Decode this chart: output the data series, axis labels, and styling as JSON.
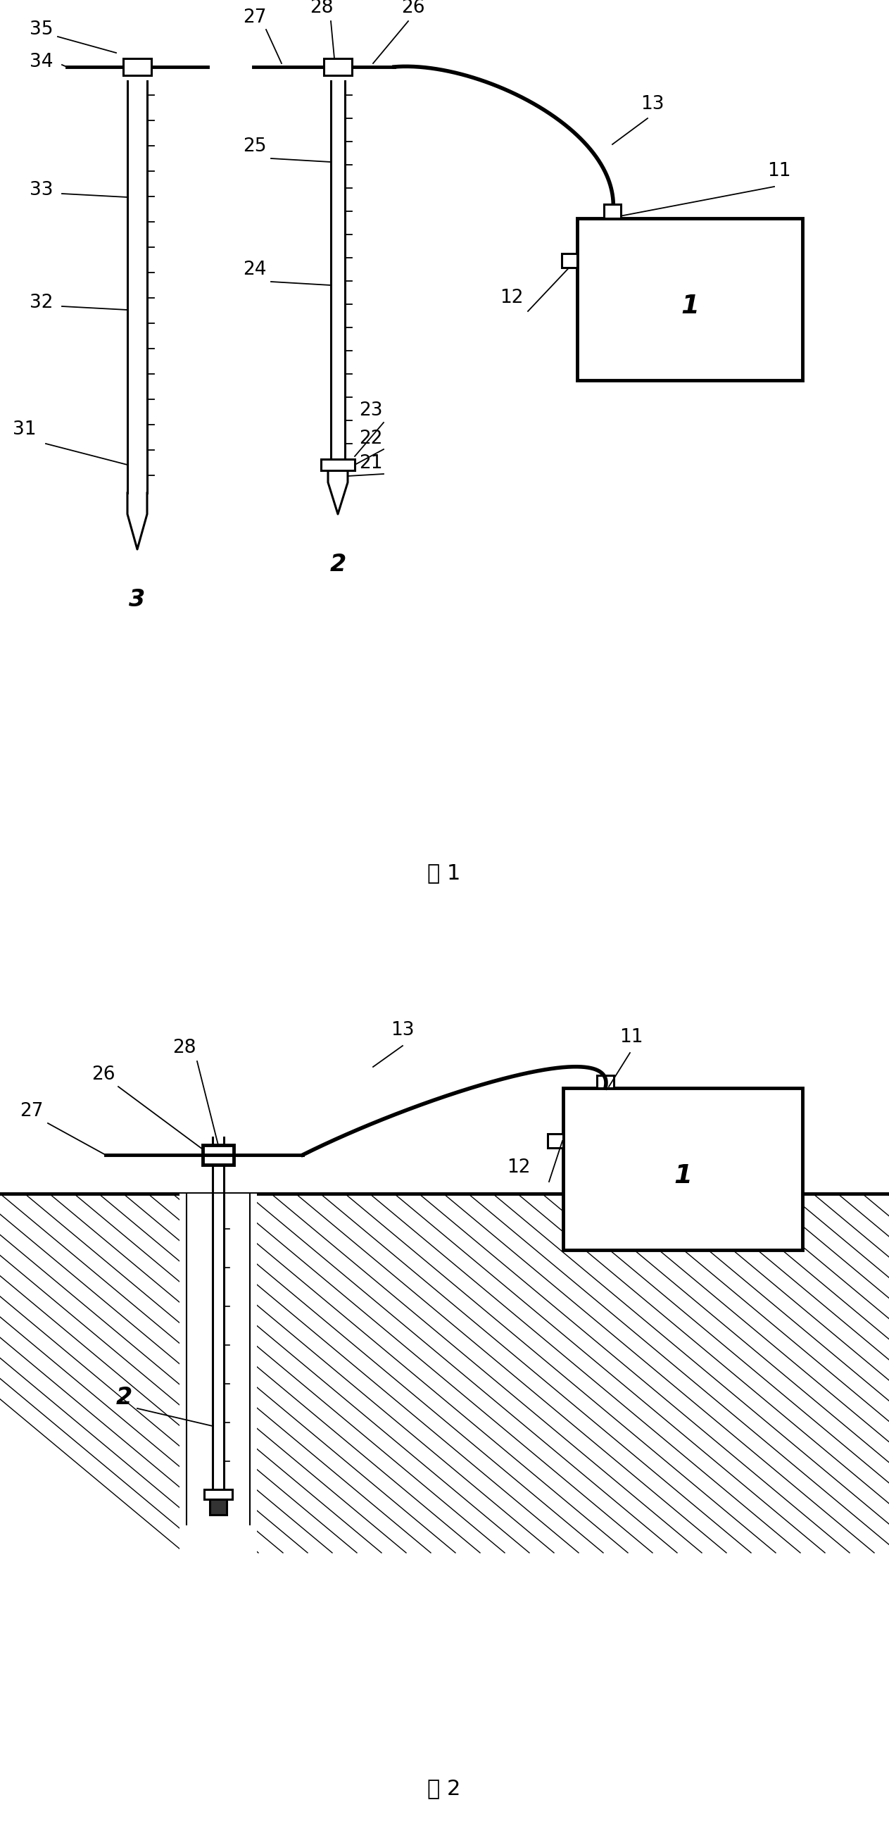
{
  "fig_width": 12.63,
  "fig_height": 26.1,
  "bg_color": "#ffffff",
  "line_color": "#000000",
  "fig1_caption": "图 1",
  "fig2_caption": "图 2"
}
